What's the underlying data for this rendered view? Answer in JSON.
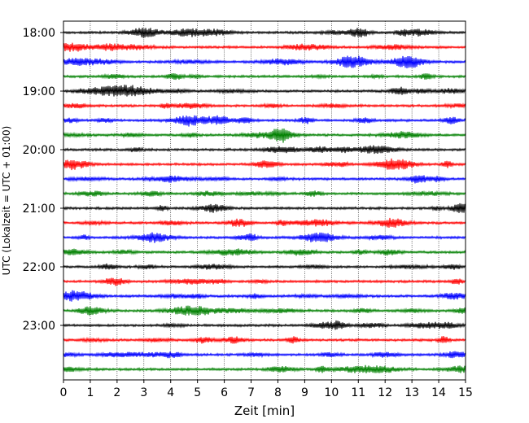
{
  "chart_data": {
    "type": "line",
    "title": "",
    "xlabel": "Zeit  [min]",
    "ylabel": "UTC (Lokalzeit = UTC + 01:00)",
    "xlim": [
      0,
      15
    ],
    "x_ticks": [
      "0",
      "1",
      "2",
      "3",
      "4",
      "5",
      "6",
      "7",
      "8",
      "9",
      "10",
      "11",
      "12",
      "13",
      "14",
      "15"
    ],
    "y_ticks": [
      "18:00",
      "19:00",
      "20:00",
      "21:00",
      "22:00",
      "23:00"
    ],
    "trace_interval_minutes": 15,
    "start_time": "18:00",
    "trace_count": 24,
    "trace_colors": [
      "#000000",
      "#ff0000",
      "#0000ff",
      "#008000"
    ],
    "grid_x": "dotted",
    "legend": "none"
  }
}
